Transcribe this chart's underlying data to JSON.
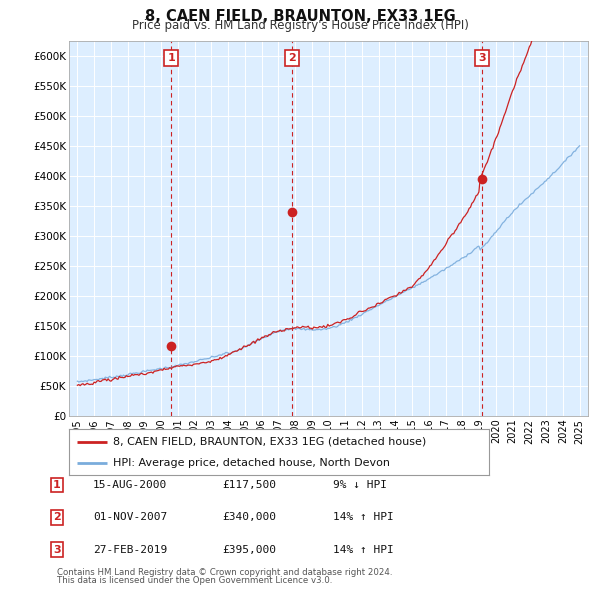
{
  "title": "8, CAEN FIELD, BRAUNTON, EX33 1EG",
  "subtitle": "Price paid vs. HM Land Registry's House Price Index (HPI)",
  "legend_line1": "8, CAEN FIELD, BRAUNTON, EX33 1EG (detached house)",
  "legend_line2": "HPI: Average price, detached house, North Devon",
  "footer1": "Contains HM Land Registry data © Crown copyright and database right 2024.",
  "footer2": "This data is licensed under the Open Government Licence v3.0.",
  "transactions": [
    {
      "num": 1,
      "date": "15-AUG-2000",
      "price": 117500,
      "pct": "9%",
      "dir": "↓",
      "x_year": 2000.62
    },
    {
      "num": 2,
      "date": "01-NOV-2007",
      "price": 340000,
      "pct": "14%",
      "dir": "↑",
      "x_year": 2007.83
    },
    {
      "num": 3,
      "date": "27-FEB-2019",
      "price": 395000,
      "pct": "14%",
      "dir": "↑",
      "x_year": 2019.16
    }
  ],
  "xlim": [
    1994.5,
    2025.5
  ],
  "ylim": [
    0,
    625000
  ],
  "yticks": [
    0,
    50000,
    100000,
    150000,
    200000,
    250000,
    300000,
    350000,
    400000,
    450000,
    500000,
    550000,
    600000
  ],
  "ytick_labels": [
    "£0",
    "£50K",
    "£100K",
    "£150K",
    "£200K",
    "£250K",
    "£300K",
    "£350K",
    "£400K",
    "£450K",
    "£500K",
    "£550K",
    "£600K"
  ],
  "hpi_color": "#7aacdc",
  "price_color": "#cc2222",
  "vline_color": "#cc2222",
  "chart_bg_color": "#ddeeff",
  "background_color": "#ffffff",
  "grid_color": "#ffffff"
}
